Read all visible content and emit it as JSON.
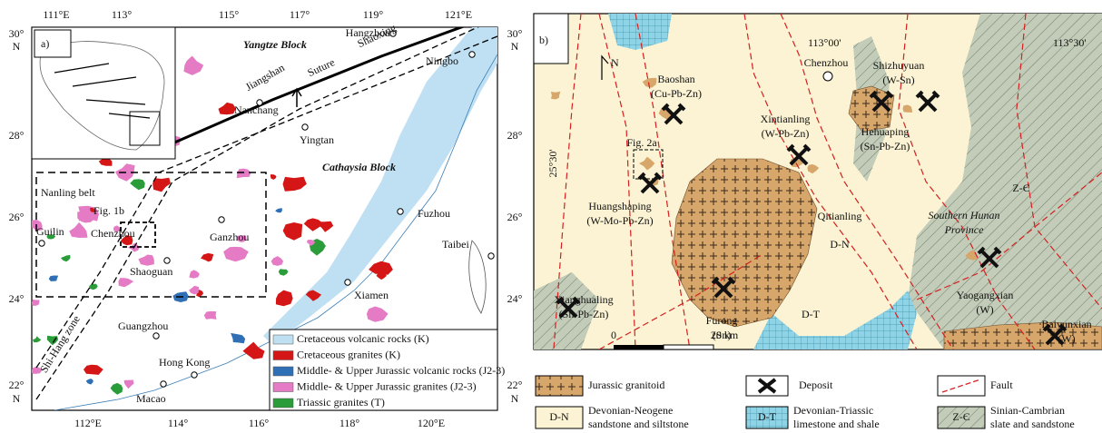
{
  "panel_a": {
    "label": "a)",
    "top_lon": [
      "111°E",
      "113°",
      "115°",
      "117°",
      "119°",
      "121°E"
    ],
    "bottom_lon": [
      "112°E",
      "114°",
      "116°",
      "118°",
      "120°E"
    ],
    "lat": [
      "30°",
      "28°",
      "26°",
      "24°",
      "22°"
    ],
    "hemisphere": "N",
    "places": [
      "Yangtze Block",
      "Hangzhou",
      "Shaoxing",
      "Ningbo",
      "Jiangshan",
      "Suture",
      "Nanchang",
      "Yingtan",
      "Cathaysia Block",
      "Nanling belt",
      "Fig. 1b",
      "Guilin",
      "Chenzhou",
      "Ganzhou",
      "Fuzhou",
      "Shaoguan",
      "Taibei",
      "Xiamen",
      "Guangzhou",
      "Shi-Hang zone",
      "Hong Kong",
      "Macao"
    ],
    "legend": [
      "Cretaceous volcanic rocks (K)",
      "Cretaceous granites (K)",
      "Middle- & Upper Jurassic volcanic rocks (J2-3)",
      "Middle- & Upper Jurassic granites (J2-3)",
      "Triassic granites (T)"
    ]
  },
  "panel_b": {
    "label": "b)",
    "lon": [
      "113°00'",
      "113°30'"
    ],
    "lat": "25°30'",
    "north": "N",
    "places": [
      {
        "lines": [
          "Chenzhou"
        ]
      },
      {
        "lines": [
          "Baoshan",
          "(Cu-Pb-Zn)"
        ]
      },
      {
        "lines": [
          "Shizhuyuan",
          "(W-Sn)"
        ]
      },
      {
        "lines": [
          "Xintianling",
          "(W-Pb-Zn)"
        ]
      },
      {
        "lines": [
          "Hehuaping",
          "(Sn-Pb-Zn)"
        ]
      },
      {
        "lines": [
          "Fig. 2a"
        ]
      },
      {
        "lines": [
          "Huangshaping",
          "(W-Mo-Pb-Zn)"
        ]
      },
      {
        "lines": [
          "Qitianling"
        ]
      },
      {
        "lines": [
          "Southern Hunan",
          "Province"
        ]
      },
      {
        "lines": [
          "D-N"
        ]
      },
      {
        "lines": [
          "Z-Є"
        ]
      },
      {
        "lines": [
          "Xianghualing",
          "(Sn-Pb-Zn)"
        ]
      },
      {
        "lines": [
          "Furong",
          "(Sn)"
        ]
      },
      {
        "lines": [
          "Yaogangxian",
          "(W)"
        ]
      },
      {
        "lines": [
          "Baiyunxian",
          "(W)"
        ]
      },
      {
        "lines": [
          "D-T"
        ]
      }
    ],
    "scale": [
      "0",
      "20 km"
    ],
    "legend": [
      {
        "lines": [
          "Jurassic granitoid"
        ]
      },
      {
        "lines": [
          "Deposit"
        ]
      },
      {
        "lines": [
          "Fault"
        ]
      },
      {
        "code": "D-N",
        "lines": [
          "Devonian-Neogene",
          "sandstone and siltstone"
        ]
      },
      {
        "code": "D-T",
        "lines": [
          "Devonian-Triassic",
          "limestone and shale"
        ]
      },
      {
        "code": "Z-Є",
        "lines": [
          "Sinian-Cambrian",
          "slate and sandstone"
        ]
      }
    ]
  }
}
